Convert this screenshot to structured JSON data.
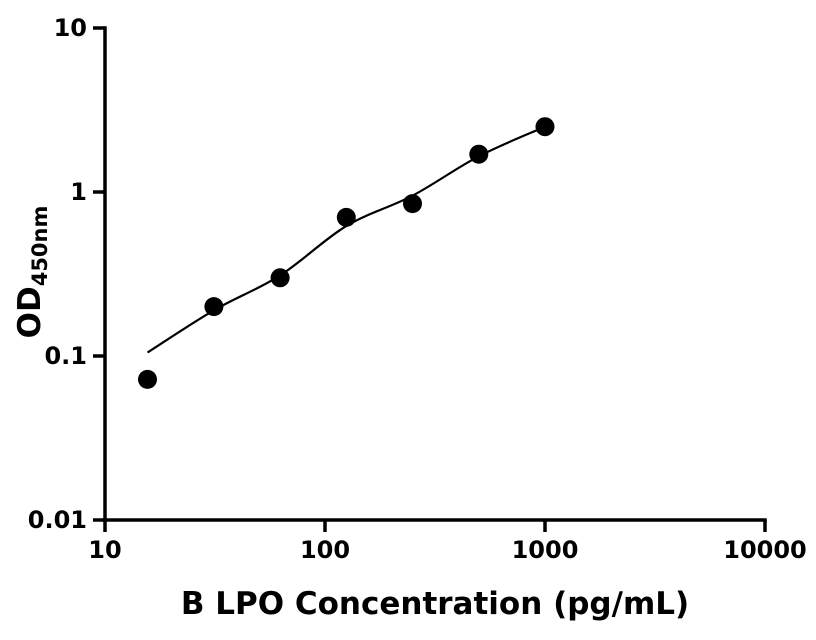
{
  "figure": {
    "ylabel_main": "OD",
    "ylabel_sub": "450nm"
  },
  "chart_data": {
    "type": "scatter",
    "title": "",
    "xlabel": "B LPO Concentration (pg/mL)",
    "ylabel": "OD450nm",
    "x_scale": "log",
    "y_scale": "log",
    "xlim": [
      10,
      10000
    ],
    "ylim": [
      0.01,
      10
    ],
    "x_ticks": [
      10,
      100,
      1000,
      10000
    ],
    "x_tick_labels": [
      "10",
      "100",
      "1000",
      "10000"
    ],
    "y_ticks": [
      0.01,
      0.1,
      1,
      10
    ],
    "y_tick_labels": [
      "0.01",
      "0.1",
      "1",
      "10"
    ],
    "grid": false,
    "legend": false,
    "point_color": "#000000",
    "line_color": "#000000",
    "series": [
      {
        "name": "standard-points",
        "type": "scatter",
        "marker": "circle",
        "x": [
          15.6,
          31.25,
          62.5,
          125,
          250,
          500,
          1000
        ],
        "y": [
          0.072,
          0.2,
          0.3,
          0.7,
          0.85,
          1.7,
          2.5
        ]
      },
      {
        "name": "fitted-curve",
        "type": "line",
        "x": [
          15.6,
          31.25,
          62.5,
          125,
          250,
          500,
          1000
        ],
        "y": [
          0.105,
          0.19,
          0.31,
          0.62,
          0.95,
          1.65,
          2.5
        ]
      }
    ]
  }
}
